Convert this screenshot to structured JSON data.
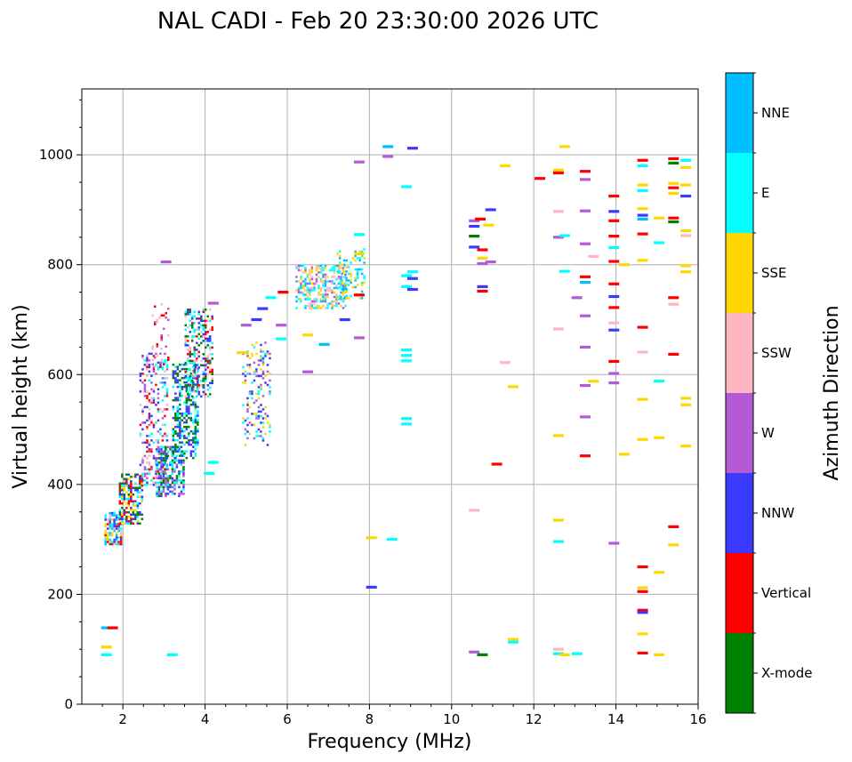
{
  "chart_data": {
    "type": "scatter",
    "title": "NAL CADI - Feb 20 23:30:00 2026 UTC",
    "xlabel": "Frequency (MHz)",
    "ylabel": "Virtual height (km)",
    "xlim": [
      1,
      16
    ],
    "ylim": [
      0,
      1120
    ],
    "xticks": [
      2,
      4,
      6,
      8,
      10,
      12,
      14,
      16
    ],
    "yticks": [
      0,
      200,
      400,
      600,
      800,
      1000
    ],
    "grid": true,
    "colorbar": {
      "title": "Azimuth Direction",
      "position": "right",
      "entries": [
        {
          "name": "X-mode",
          "color": "#008000"
        },
        {
          "name": "Vertical",
          "color": "#ff0000"
        },
        {
          "name": "NNW",
          "color": "#3a3aff"
        },
        {
          "name": "W",
          "color": "#b45ad6"
        },
        {
          "name": "SSW",
          "color": "#ffb6c1"
        },
        {
          "name": "SSE",
          "color": "#ffd700"
        },
        {
          "name": "E",
          "color": "#00ffff"
        },
        {
          "name": "NNE",
          "color": "#00bfff"
        }
      ]
    },
    "dense_regions": [
      {
        "name": "trace-o-low",
        "x": [
          1.55,
          1.95
        ],
        "y": [
          290,
          350
        ],
        "colors": [
          "Vertical",
          "NNW",
          "SSE",
          "E",
          "SSW",
          "NNE"
        ],
        "density": 0.75
      },
      {
        "name": "trace-o-mid",
        "x": [
          1.9,
          2.45
        ],
        "y": [
          330,
          420
        ],
        "colors": [
          "Vertical",
          "E",
          "NNW",
          "X-mode",
          "SSE"
        ],
        "density": 0.55
      },
      {
        "name": "trace-o-high",
        "x": [
          2.4,
          3.1
        ],
        "y": [
          400,
          640
        ],
        "colors": [
          "Vertical",
          "W",
          "E",
          "SSW",
          "NNW"
        ],
        "density": 0.3
      },
      {
        "name": "trace-o-top",
        "x": [
          2.7,
          3.1
        ],
        "y": [
          620,
          730
        ],
        "colors": [
          "Vertical",
          "SSW",
          "W"
        ],
        "density": 0.15
      },
      {
        "name": "trace-x-low",
        "x": [
          2.8,
          3.5
        ],
        "y": [
          380,
          470
        ],
        "colors": [
          "X-mode",
          "E",
          "NNW",
          "W"
        ],
        "density": 0.55
      },
      {
        "name": "trace-x-mid",
        "x": [
          3.2,
          3.8
        ],
        "y": [
          450,
          620
        ],
        "colors": [
          "X-mode",
          "E",
          "NNW"
        ],
        "density": 0.45
      },
      {
        "name": "trace-x-top",
        "x": [
          3.5,
          4.2
        ],
        "y": [
          560,
          720
        ],
        "colors": [
          "X-mode",
          "E",
          "NNW",
          "Vertical",
          "SSW"
        ],
        "density": 0.4
      },
      {
        "name": "cluster-5mhz",
        "x": [
          4.9,
          5.6
        ],
        "y": [
          470,
          660
        ],
        "colors": [
          "E",
          "NNW",
          "W",
          "SSE"
        ],
        "density": 0.25
      },
      {
        "name": "cluster-6-7mhz",
        "x": [
          6.2,
          7.4
        ],
        "y": [
          720,
          800
        ],
        "colors": [
          "E",
          "SSW",
          "W",
          "NNE",
          "SSE"
        ],
        "density": 0.5
      },
      {
        "name": "cluster-7-8mhz",
        "x": [
          7.2,
          7.9
        ],
        "y": [
          740,
          830
        ],
        "colors": [
          "E",
          "SSE",
          "NNE"
        ],
        "density": 0.25
      }
    ],
    "points": [
      {
        "x": 1.6,
        "y": 139,
        "az": "NNE"
      },
      {
        "x": 1.75,
        "y": 139,
        "az": "Vertical"
      },
      {
        "x": 1.6,
        "y": 90,
        "az": "E"
      },
      {
        "x": 1.6,
        "y": 104,
        "az": "SSE"
      },
      {
        "x": 3.2,
        "y": 90,
        "az": "E"
      },
      {
        "x": 3.05,
        "y": 805,
        "az": "W"
      },
      {
        "x": 4.1,
        "y": 420,
        "az": "E"
      },
      {
        "x": 4.2,
        "y": 440,
        "az": "E"
      },
      {
        "x": 4.2,
        "y": 730,
        "az": "W"
      },
      {
        "x": 4.9,
        "y": 640,
        "az": "SSE"
      },
      {
        "x": 5.0,
        "y": 690,
        "az": "W"
      },
      {
        "x": 5.25,
        "y": 700,
        "az": "NNW"
      },
      {
        "x": 5.4,
        "y": 720,
        "az": "NNW"
      },
      {
        "x": 5.6,
        "y": 740,
        "az": "E"
      },
      {
        "x": 5.9,
        "y": 750,
        "az": "Vertical"
      },
      {
        "x": 5.85,
        "y": 690,
        "az": "W"
      },
      {
        "x": 5.85,
        "y": 665,
        "az": "E"
      },
      {
        "x": 6.5,
        "y": 672,
        "az": "SSE"
      },
      {
        "x": 6.5,
        "y": 605,
        "az": "W"
      },
      {
        "x": 6.9,
        "y": 655,
        "az": "NNE"
      },
      {
        "x": 7.4,
        "y": 700,
        "az": "NNW"
      },
      {
        "x": 7.75,
        "y": 667,
        "az": "W"
      },
      {
        "x": 7.75,
        "y": 745,
        "az": "Vertical"
      },
      {
        "x": 7.75,
        "y": 987,
        "az": "W"
      },
      {
        "x": 7.75,
        "y": 855,
        "az": "E"
      },
      {
        "x": 7.75,
        "y": 820,
        "az": "SSE"
      },
      {
        "x": 8.05,
        "y": 303,
        "az": "SSE"
      },
      {
        "x": 8.05,
        "y": 213,
        "az": "NNW"
      },
      {
        "x": 8.45,
        "y": 1015,
        "az": "NNE"
      },
      {
        "x": 8.45,
        "y": 997,
        "az": "W"
      },
      {
        "x": 8.55,
        "y": 300,
        "az": "E"
      },
      {
        "x": 8.9,
        "y": 645,
        "az": "E"
      },
      {
        "x": 8.9,
        "y": 635,
        "az": "E"
      },
      {
        "x": 8.9,
        "y": 625,
        "az": "E"
      },
      {
        "x": 8.9,
        "y": 520,
        "az": "E"
      },
      {
        "x": 8.9,
        "y": 510,
        "az": "E"
      },
      {
        "x": 8.9,
        "y": 942,
        "az": "E"
      },
      {
        "x": 8.9,
        "y": 780,
        "az": "E"
      },
      {
        "x": 8.9,
        "y": 760,
        "az": "E"
      },
      {
        "x": 9.05,
        "y": 1012,
        "az": "NNW"
      },
      {
        "x": 9.05,
        "y": 775,
        "az": "NNW"
      },
      {
        "x": 9.05,
        "y": 755,
        "az": "NNW"
      },
      {
        "x": 9.05,
        "y": 787,
        "az": "E"
      },
      {
        "x": 10.55,
        "y": 880,
        "az": "W"
      },
      {
        "x": 10.55,
        "y": 870,
        "az": "NNW"
      },
      {
        "x": 10.55,
        "y": 852,
        "az": "X-mode"
      },
      {
        "x": 10.55,
        "y": 832,
        "az": "NNW"
      },
      {
        "x": 10.55,
        "y": 353,
        "az": "SSW"
      },
      {
        "x": 10.55,
        "y": 95,
        "az": "W"
      },
      {
        "x": 10.7,
        "y": 883,
        "az": "Vertical"
      },
      {
        "x": 10.75,
        "y": 827,
        "az": "Vertical"
      },
      {
        "x": 10.75,
        "y": 812,
        "az": "SSE"
      },
      {
        "x": 10.75,
        "y": 802,
        "az": "W"
      },
      {
        "x": 10.75,
        "y": 760,
        "az": "NNW"
      },
      {
        "x": 10.75,
        "y": 752,
        "az": "Vertical"
      },
      {
        "x": 10.75,
        "y": 90,
        "az": "X-mode"
      },
      {
        "x": 10.9,
        "y": 872,
        "az": "SSE"
      },
      {
        "x": 10.95,
        "y": 805,
        "az": "W"
      },
      {
        "x": 10.95,
        "y": 900,
        "az": "NNW"
      },
      {
        "x": 11.1,
        "y": 437,
        "az": "Vertical"
      },
      {
        "x": 11.3,
        "y": 980,
        "az": "SSE"
      },
      {
        "x": 11.3,
        "y": 622,
        "az": "SSW"
      },
      {
        "x": 11.5,
        "y": 578,
        "az": "SSE"
      },
      {
        "x": 11.5,
        "y": 118,
        "az": "SSE"
      },
      {
        "x": 11.5,
        "y": 113,
        "az": "E"
      },
      {
        "x": 12.15,
        "y": 957,
        "az": "Vertical"
      },
      {
        "x": 12.6,
        "y": 972,
        "az": "SSE"
      },
      {
        "x": 12.6,
        "y": 967,
        "az": "Vertical"
      },
      {
        "x": 12.6,
        "y": 897,
        "az": "SSW"
      },
      {
        "x": 12.6,
        "y": 850,
        "az": "W"
      },
      {
        "x": 12.6,
        "y": 683,
        "az": "SSW"
      },
      {
        "x": 12.6,
        "y": 489,
        "az": "SSE"
      },
      {
        "x": 12.6,
        "y": 335,
        "az": "SSE"
      },
      {
        "x": 12.6,
        "y": 296,
        "az": "E"
      },
      {
        "x": 12.6,
        "y": 100,
        "az": "SSW"
      },
      {
        "x": 12.6,
        "y": 92,
        "az": "E"
      },
      {
        "x": 12.75,
        "y": 1015,
        "az": "SSE"
      },
      {
        "x": 12.75,
        "y": 853,
        "az": "E"
      },
      {
        "x": 12.75,
        "y": 788,
        "az": "E"
      },
      {
        "x": 12.75,
        "y": 90,
        "az": "SSE"
      },
      {
        "x": 13.05,
        "y": 740,
        "az": "W"
      },
      {
        "x": 13.05,
        "y": 92,
        "az": "E"
      },
      {
        "x": 13.25,
        "y": 970,
        "az": "Vertical"
      },
      {
        "x": 13.25,
        "y": 955,
        "az": "W"
      },
      {
        "x": 13.25,
        "y": 898,
        "az": "W"
      },
      {
        "x": 13.25,
        "y": 838,
        "az": "W"
      },
      {
        "x": 13.25,
        "y": 778,
        "az": "Vertical"
      },
      {
        "x": 13.25,
        "y": 768,
        "az": "NNE"
      },
      {
        "x": 13.25,
        "y": 707,
        "az": "W"
      },
      {
        "x": 13.25,
        "y": 650,
        "az": "W"
      },
      {
        "x": 13.25,
        "y": 580,
        "az": "W"
      },
      {
        "x": 13.25,
        "y": 523,
        "az": "W"
      },
      {
        "x": 13.25,
        "y": 452,
        "az": "Vertical"
      },
      {
        "x": 13.45,
        "y": 815,
        "az": "SSW"
      },
      {
        "x": 13.45,
        "y": 588,
        "az": "SSE"
      },
      {
        "x": 13.95,
        "y": 925,
        "az": "Vertical"
      },
      {
        "x": 13.95,
        "y": 897,
        "az": "NNW"
      },
      {
        "x": 13.95,
        "y": 880,
        "az": "Vertical"
      },
      {
        "x": 13.95,
        "y": 852,
        "az": "Vertical"
      },
      {
        "x": 13.95,
        "y": 831,
        "az": "E"
      },
      {
        "x": 13.95,
        "y": 806,
        "az": "Vertical"
      },
      {
        "x": 13.95,
        "y": 765,
        "az": "Vertical"
      },
      {
        "x": 13.95,
        "y": 742,
        "az": "NNW"
      },
      {
        "x": 13.95,
        "y": 722,
        "az": "Vertical"
      },
      {
        "x": 13.95,
        "y": 694,
        "az": "SSW"
      },
      {
        "x": 13.95,
        "y": 681,
        "az": "NNW"
      },
      {
        "x": 13.95,
        "y": 624,
        "az": "Vertical"
      },
      {
        "x": 13.95,
        "y": 602,
        "az": "W"
      },
      {
        "x": 13.95,
        "y": 585,
        "az": "W"
      },
      {
        "x": 13.95,
        "y": 293,
        "az": "W"
      },
      {
        "x": 14.2,
        "y": 455,
        "az": "SSE"
      },
      {
        "x": 14.2,
        "y": 800,
        "az": "SSE"
      },
      {
        "x": 14.65,
        "y": 990,
        "az": "Vertical"
      },
      {
        "x": 14.65,
        "y": 980,
        "az": "E"
      },
      {
        "x": 14.65,
        "y": 945,
        "az": "SSE"
      },
      {
        "x": 14.65,
        "y": 935,
        "az": "E"
      },
      {
        "x": 14.65,
        "y": 902,
        "az": "SSE"
      },
      {
        "x": 14.65,
        "y": 890,
        "az": "NNW"
      },
      {
        "x": 14.65,
        "y": 883,
        "az": "NNE"
      },
      {
        "x": 14.65,
        "y": 856,
        "az": "Vertical"
      },
      {
        "x": 14.65,
        "y": 808,
        "az": "SSE"
      },
      {
        "x": 14.65,
        "y": 686,
        "az": "Vertical"
      },
      {
        "x": 14.65,
        "y": 641,
        "az": "SSW"
      },
      {
        "x": 14.65,
        "y": 555,
        "az": "SSE"
      },
      {
        "x": 14.65,
        "y": 482,
        "az": "SSE"
      },
      {
        "x": 14.65,
        "y": 250,
        "az": "Vertical"
      },
      {
        "x": 14.65,
        "y": 212,
        "az": "SSE"
      },
      {
        "x": 14.65,
        "y": 205,
        "az": "Vertical"
      },
      {
        "x": 14.65,
        "y": 171,
        "az": "Vertical"
      },
      {
        "x": 14.65,
        "y": 167,
        "az": "NNW"
      },
      {
        "x": 14.65,
        "y": 128,
        "az": "SSE"
      },
      {
        "x": 14.65,
        "y": 93,
        "az": "Vertical"
      },
      {
        "x": 15.05,
        "y": 885,
        "az": "SSE"
      },
      {
        "x": 15.05,
        "y": 840,
        "az": "E"
      },
      {
        "x": 15.05,
        "y": 588,
        "az": "E"
      },
      {
        "x": 15.05,
        "y": 485,
        "az": "SSE"
      },
      {
        "x": 15.05,
        "y": 240,
        "az": "SSE"
      },
      {
        "x": 15.05,
        "y": 90,
        "az": "SSE"
      },
      {
        "x": 15.4,
        "y": 993,
        "az": "Vertical"
      },
      {
        "x": 15.4,
        "y": 985,
        "az": "X-mode"
      },
      {
        "x": 15.4,
        "y": 948,
        "az": "SSE"
      },
      {
        "x": 15.4,
        "y": 940,
        "az": "Vertical"
      },
      {
        "x": 15.4,
        "y": 930,
        "az": "SSE"
      },
      {
        "x": 15.4,
        "y": 885,
        "az": "Vertical"
      },
      {
        "x": 15.4,
        "y": 878,
        "az": "X-mode"
      },
      {
        "x": 15.4,
        "y": 740,
        "az": "Vertical"
      },
      {
        "x": 15.4,
        "y": 728,
        "az": "SSW"
      },
      {
        "x": 15.4,
        "y": 637,
        "az": "Vertical"
      },
      {
        "x": 15.4,
        "y": 323,
        "az": "Vertical"
      },
      {
        "x": 15.4,
        "y": 290,
        "az": "SSE"
      },
      {
        "x": 15.7,
        "y": 990,
        "az": "E"
      },
      {
        "x": 15.7,
        "y": 977,
        "az": "SSE"
      },
      {
        "x": 15.7,
        "y": 945,
        "az": "SSE"
      },
      {
        "x": 15.7,
        "y": 925,
        "az": "NNW"
      },
      {
        "x": 15.7,
        "y": 862,
        "az": "SSE"
      },
      {
        "x": 15.7,
        "y": 853,
        "az": "SSW"
      },
      {
        "x": 15.7,
        "y": 798,
        "az": "SSE"
      },
      {
        "x": 15.7,
        "y": 787,
        "az": "SSE"
      },
      {
        "x": 15.7,
        "y": 557,
        "az": "SSE"
      },
      {
        "x": 15.7,
        "y": 545,
        "az": "SSE"
      },
      {
        "x": 15.7,
        "y": 470,
        "az": "SSE"
      }
    ]
  }
}
